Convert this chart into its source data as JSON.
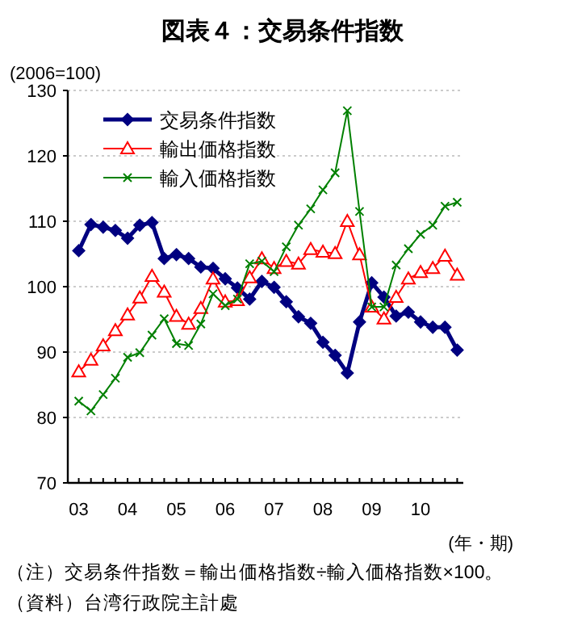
{
  "chart_data": {
    "type": "line",
    "title": "図表４：交易条件指数",
    "ylabel": "(2006=100)",
    "xlabel": "(年・期)",
    "categories": [
      "03",
      null,
      null,
      null,
      "04",
      null,
      null,
      null,
      "05",
      null,
      null,
      null,
      "06",
      null,
      null,
      null,
      "07",
      null,
      null,
      null,
      "08",
      null,
      null,
      null,
      "09",
      null,
      null,
      null,
      "10",
      null,
      null,
      null
    ],
    "series": [
      {
        "name": "交易条件指数",
        "color": "#000080",
        "marker": "diamond",
        "values": [
          105.5,
          109.5,
          109.1,
          108.6,
          107.4,
          109.4,
          109.8,
          104.3,
          104.9,
          104.3,
          103.0,
          102.8,
          101.2,
          99.8,
          98.1,
          100.8,
          99.9,
          97.7,
          95.4,
          94.4,
          91.5,
          89.5,
          86.8,
          94.6,
          100.6,
          98.4,
          95.5,
          96.1,
          94.6,
          93.8,
          93.8,
          90.3
        ]
      },
      {
        "name": "輸出価格指数",
        "color": "#ff0000",
        "marker": "triangle",
        "values": [
          87.0,
          88.8,
          91.0,
          93.3,
          95.7,
          98.3,
          101.6,
          99.2,
          95.5,
          94.3,
          96.7,
          101.2,
          97.7,
          97.9,
          101.4,
          104.3,
          102.8,
          103.9,
          103.5,
          105.7,
          105.3,
          105.1,
          110.0,
          104.9,
          96.9,
          95.1,
          98.4,
          101.2,
          102.2,
          102.8,
          104.7,
          101.8
        ]
      },
      {
        "name": "輸入価格指数",
        "color": "#008000",
        "marker": "cross",
        "values": [
          82.5,
          81.0,
          83.5,
          86.0,
          89.2,
          89.9,
          92.6,
          95.1,
          91.3,
          91.0,
          94.3,
          98.9,
          97.1,
          98.1,
          103.5,
          103.9,
          102.3,
          106.1,
          109.4,
          111.9,
          114.8,
          117.4,
          126.9,
          111.5,
          96.9,
          96.9,
          103.3,
          105.8,
          108.0,
          109.4,
          112.3,
          112.9
        ]
      }
    ],
    "ylim": [
      70,
      130
    ],
    "yticks": [
      70,
      80,
      90,
      100,
      110,
      120,
      130
    ],
    "grid": "y",
    "legend": "top left",
    "annotations": [
      "（注）交易条件指数＝輸出価格指数÷輸入価格指数×100。",
      "（資料）台湾行政院主計處"
    ]
  }
}
